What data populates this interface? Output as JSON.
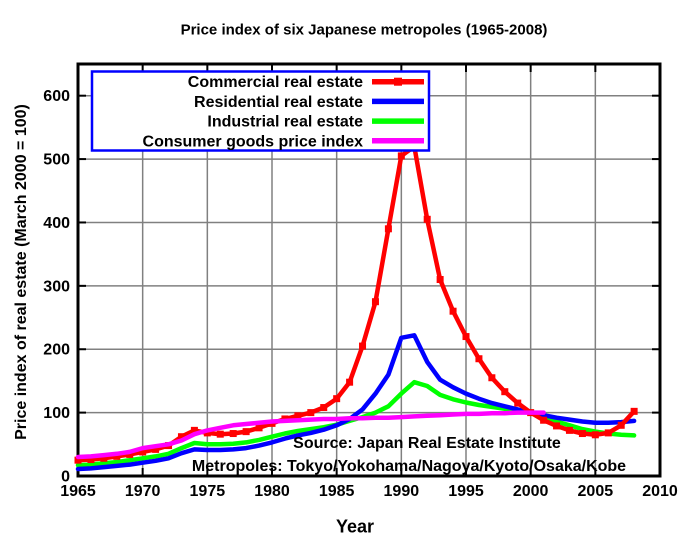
{
  "title": "Price index of six Japanese metropoles (1965-2008)",
  "colors": {
    "background": "#ffffff",
    "axis": "#000000",
    "grid": "#808080",
    "legend_border": "#0000ff",
    "commercial": "#ff0000",
    "residential": "#0000ff",
    "industrial": "#00ff00",
    "consumer": "#ff00ff"
  },
  "chart_data": {
    "type": "line",
    "title": "Price index of six Japanese metropoles (1965-2008)",
    "xlabel": "Year",
    "ylabel": "Price index of real estate (March 2000 = 100)",
    "xlim": [
      1965,
      2010
    ],
    "ylim": [
      0,
      650
    ],
    "x_ticks": [
      1965,
      1970,
      1975,
      1980,
      1985,
      1990,
      1995,
      2000,
      2005,
      2010
    ],
    "y_ticks": [
      0,
      100,
      200,
      300,
      400,
      500,
      600
    ],
    "grid": true,
    "legend_position": "top-left",
    "annotations": [
      "Source: Japan Real Estate Institute",
      "Metropoles: Tokyo/Yokohama/Nagoya/Kyoto/Osaka/Kobe"
    ],
    "series": [
      {
        "name": "Commercial real estate",
        "color": "#ff0000",
        "markers": true,
        "x_start": 1965,
        "x_step": 1,
        "values": [
          25,
          26,
          28,
          31,
          34,
          38,
          42,
          48,
          62,
          72,
          68,
          66,
          67,
          70,
          76,
          83,
          90,
          95,
          100,
          108,
          122,
          148,
          205,
          275,
          390,
          505,
          520,
          405,
          310,
          260,
          220,
          185,
          155,
          133,
          115,
          100,
          88,
          79,
          72,
          67,
          65,
          68,
          80,
          102
        ]
      },
      {
        "name": "Residential real estate",
        "color": "#0000ff",
        "markers": false,
        "x_start": 1965,
        "x_step": 1,
        "values": [
          11,
          12,
          14,
          16,
          18,
          21,
          24,
          28,
          36,
          42,
          41,
          41,
          42,
          44,
          48,
          53,
          59,
          64,
          68,
          73,
          80,
          90,
          105,
          130,
          160,
          218,
          222,
          180,
          152,
          140,
          130,
          122,
          115,
          110,
          105,
          100,
          96,
          92,
          89,
          86,
          84,
          84,
          85,
          87
        ]
      },
      {
        "name": "Industrial real estate",
        "color": "#00ff00",
        "markers": false,
        "x_start": 1965,
        "x_step": 1,
        "values": [
          17,
          18,
          20,
          22,
          25,
          28,
          31,
          35,
          44,
          52,
          50,
          50,
          51,
          53,
          57,
          62,
          67,
          71,
          74,
          77,
          81,
          87,
          93,
          100,
          110,
          130,
          148,
          142,
          128,
          121,
          116,
          112,
          109,
          106,
          103,
          100,
          93,
          86,
          80,
          74,
          70,
          67,
          65,
          64
        ]
      },
      {
        "name": "Consumer goods price index",
        "color": "#ff00ff",
        "markers": false,
        "x_start": 1965,
        "x_step": 1,
        "values": [
          30,
          31,
          33,
          35,
          38,
          44,
          47,
          50,
          56,
          66,
          72,
          76,
          80,
          82,
          84,
          86,
          87,
          88,
          89,
          90,
          90,
          91,
          91,
          92,
          92,
          93,
          94,
          95,
          96,
          97,
          98,
          98,
          99,
          99,
          100,
          100,
          100
        ]
      }
    ]
  }
}
